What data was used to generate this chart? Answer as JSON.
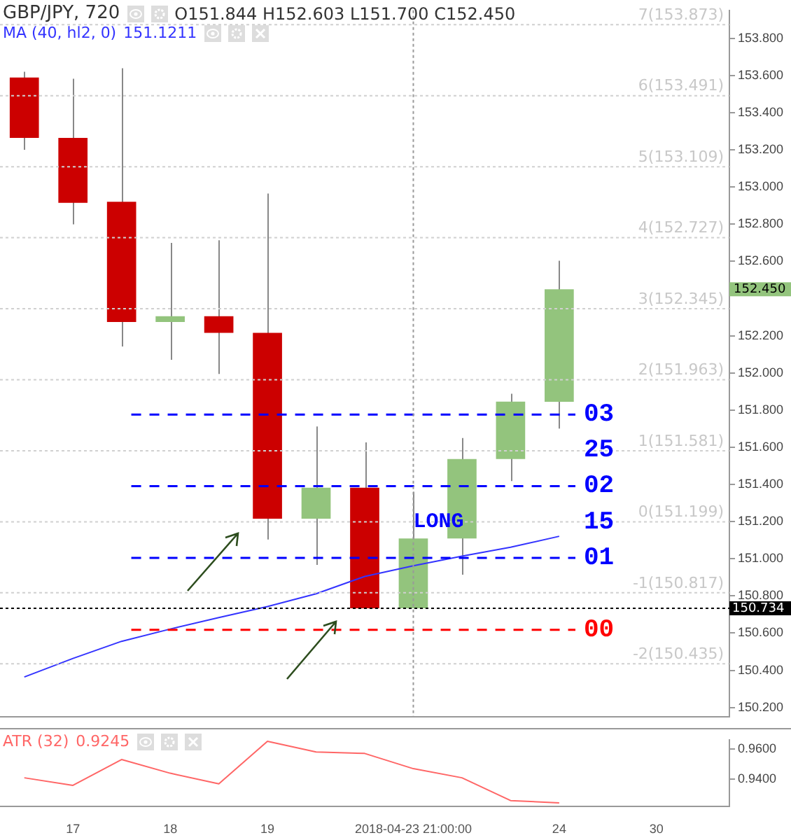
{
  "chart_data": [
    {
      "type": "candlestick",
      "title": "GBP/JPY, 720",
      "subtitle": "O151.844 H152.603 L151.700 C152.450",
      "categories": [
        null,
        "17",
        null,
        "18",
        null,
        "19",
        null,
        null,
        "2018-04-23 21:00:00",
        null,
        null,
        "24",
        null,
        "30",
        null
      ],
      "ohlc": [
        [
          153.589,
          153.62,
          153.2,
          153.264
        ],
        [
          153.264,
          153.582,
          152.799,
          152.915
        ],
        [
          152.92,
          153.639,
          152.142,
          152.274
        ],
        [
          152.274,
          152.699,
          152.07,
          152.305
        ],
        [
          152.305,
          152.713,
          151.994,
          152.215
        ],
        [
          152.215,
          152.965,
          151.104,
          151.216
        ],
        [
          151.216,
          151.712,
          150.967,
          151.382
        ],
        [
          151.382,
          151.626,
          150.734,
          150.734
        ],
        [
          150.734,
          151.361,
          150.734,
          151.109
        ],
        [
          151.109,
          151.65,
          150.914,
          151.537
        ],
        [
          151.537,
          151.888,
          151.418,
          151.845
        ],
        [
          151.844,
          152.603,
          151.7,
          152.45
        ],
        null,
        null,
        null
      ],
      "colors": [
        "#cc0000",
        "#cc0000",
        "#cc0000",
        "#93c47d",
        "#cc0000",
        "#cc0000",
        "#93c47d",
        "#cc0000",
        "#93c47d",
        "#93c47d",
        "#93c47d",
        "#93c47d",
        null,
        null,
        null
      ],
      "series": [
        {
          "name": "MA (40, hl2, 0)",
          "type": "line",
          "color": "#3333ff",
          "values": [
            150.364,
            150.464,
            150.556,
            150.622,
            150.684,
            150.743,
            150.812,
            150.905,
            150.962,
            151.014,
            151.062,
            151.121,
            null,
            null,
            null
          ]
        }
      ],
      "ylim": [
        150.15,
        153.95
      ],
      "yticks": [
        {
          "value": 150.2,
          "label": "150.200"
        },
        {
          "value": 150.4,
          "label": "150.400"
        },
        {
          "value": 150.6,
          "label": "150.600"
        },
        {
          "value": 150.8,
          "label": "150.800"
        },
        {
          "value": 151,
          "label": "151.000"
        },
        {
          "value": 151.2,
          "label": "151.200"
        },
        {
          "value": 151.4,
          "label": "151.400"
        },
        {
          "value": 151.6,
          "label": "151.600"
        },
        {
          "value": 151.8,
          "label": "151.800"
        },
        {
          "value": 152,
          "label": "152.000"
        },
        {
          "value": 152.2,
          "label": "152.200"
        },
        {
          "value": 152.6,
          "label": "152.600"
        },
        {
          "value": 152.8,
          "label": "152.800"
        },
        {
          "value": 153,
          "label": "153.000"
        },
        {
          "value": 153.2,
          "label": "153.200"
        },
        {
          "value": 153.4,
          "label": "153.400"
        },
        {
          "value": 153.6,
          "label": "153.600"
        },
        {
          "value": 153.8,
          "label": "153.800"
        }
      ],
      "ref_lines": [
        {
          "axis": "y",
          "value": 151.776,
          "color": "#0000ff",
          "line_style": "dashed"
        },
        {
          "axis": "y",
          "value": 151.391,
          "color": "#0000ff",
          "line_style": "dashed"
        },
        {
          "axis": "y",
          "value": 151.005,
          "color": "#0000ff",
          "line_style": "dashed"
        },
        {
          "axis": "y",
          "value": 150.618,
          "color": "#ff0000",
          "line_style": "dashed"
        },
        {
          "axis": "y",
          "value": 153.873,
          "label": "7(153.873)",
          "color": "#d0d0d0",
          "line_style": "dotted"
        },
        {
          "axis": "y",
          "value": 153.491,
          "label": "6(153.491)",
          "color": "#d0d0d0",
          "line_style": "dotted"
        },
        {
          "axis": "y",
          "value": 153.109,
          "label": "5(153.109)",
          "color": "#d0d0d0",
          "line_style": "dotted"
        },
        {
          "axis": "y",
          "value": 152.727,
          "label": "4(152.727)",
          "color": "#d0d0d0",
          "line_style": "dotted"
        },
        {
          "axis": "y",
          "value": 152.345,
          "label": "3(152.345)",
          "color": "#d0d0d0",
          "line_style": "dotted"
        },
        {
          "axis": "y",
          "value": 151.963,
          "label": "2(151.963)",
          "color": "#d0d0d0",
          "line_style": "dotted"
        },
        {
          "axis": "y",
          "value": 151.581,
          "label": "1(151.581)",
          "color": "#d0d0d0",
          "line_style": "dotted"
        },
        {
          "axis": "y",
          "value": 151.199,
          "label": "0(151.199)",
          "color": "#d0d0d0",
          "line_style": "dotted"
        },
        {
          "axis": "y",
          "value": 150.817,
          "label": "-1(150.817)",
          "color": "#d0d0d0",
          "line_style": "dotted"
        },
        {
          "axis": "y",
          "value": 150.435,
          "label": "-2(150.435)",
          "color": "#d0d0d0",
          "line_style": "dotted"
        },
        {
          "axis": "y",
          "value": 150.734,
          "label": "150.734",
          "color": "#000000",
          "line_style": "dotted"
        },
        {
          "axis": "x",
          "value": "2018-04-23 21:00:00",
          "color": "#999999",
          "line_style": "dotted"
        }
      ],
      "annotations": [
        "151.1211",
        "152.450",
        {
          "text": "LONG",
          "x": "2018-04-23 21:00:00",
          "y": 151.2
        },
        "03",
        "25",
        "02",
        "15",
        "01",
        "00"
      ],
      "legend": "top left",
      "tick_labels": "y"
    },
    {
      "type": "line",
      "categories": [
        null,
        "17",
        null,
        "18",
        null,
        "19",
        null,
        null,
        "2018-04-23 21:00:00",
        null,
        null,
        "24",
        null,
        "30",
        null
      ],
      "series": [
        {
          "name": "ATR (32)",
          "color": "#ff6666",
          "values": [
            0.941,
            0.936,
            0.953,
            0.944,
            0.937,
            0.965,
            0.958,
            0.957,
            0.947,
            0.941,
            0.926,
            0.9245,
            null,
            null,
            null
          ]
        }
      ],
      "annotations": [
        "0.9245"
      ],
      "ylim": [
        0.922,
        0.966
      ],
      "yticks": [
        {
          "value": 0.94,
          "label": "0.9400"
        },
        {
          "value": 0.96,
          "label": "0.9600"
        }
      ],
      "legend": "top left"
    }
  ]
}
